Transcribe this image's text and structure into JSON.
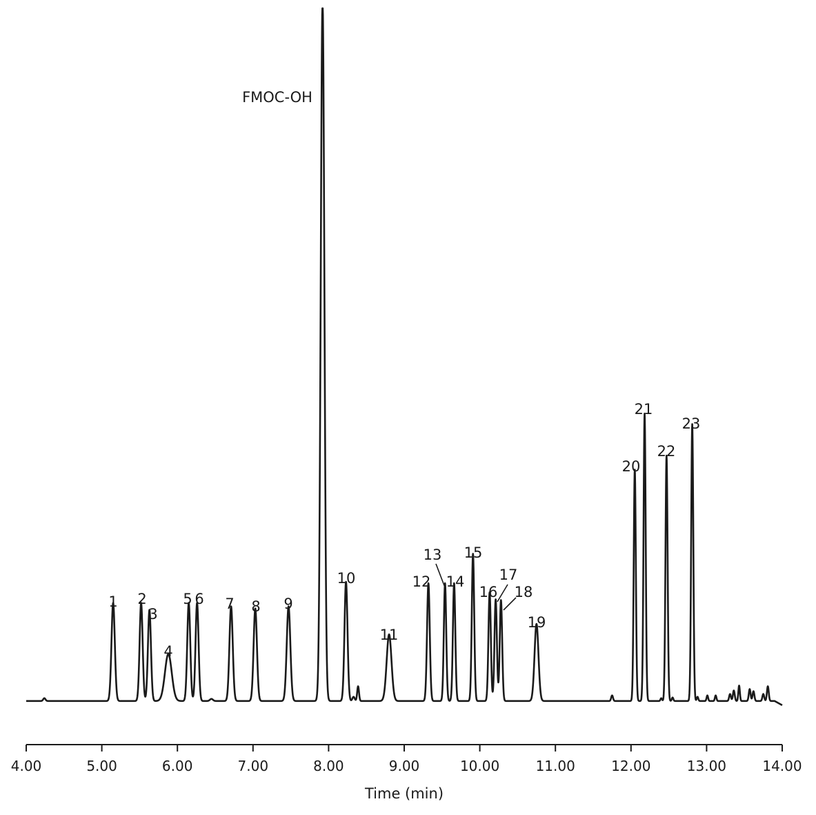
{
  "chart_data": {
    "type": "line",
    "xlabel": "Time (min)",
    "ylabel": "",
    "title": "",
    "xlim": [
      4.0,
      14.0
    ],
    "ylim": [
      0,
      100
    ],
    "grid": false,
    "legend": "none",
    "line_color": "#1a1a1a",
    "x_ticks": [
      "4.00",
      "5.00",
      "6.00",
      "7.00",
      "8.00",
      "9.00",
      "10.00",
      "11.00",
      "12.00",
      "13.00",
      "14.00"
    ],
    "baseline": 1.2,
    "peaks": [
      {
        "label": "1",
        "x": 5.15,
        "y": 14.0,
        "width": 0.022
      },
      {
        "label": "2",
        "x": 5.52,
        "y": 14.0,
        "width": 0.02
      },
      {
        "label": "3",
        "x": 5.63,
        "y": 13.0,
        "width": 0.02
      },
      {
        "label": "4",
        "x": 5.88,
        "y": 6.7,
        "width": 0.045
      },
      {
        "label": "5",
        "x": 6.15,
        "y": 14.0,
        "width": 0.02
      },
      {
        "label": "6",
        "x": 6.26,
        "y": 14.0,
        "width": 0.02
      },
      {
        "label": "7",
        "x": 6.71,
        "y": 13.5,
        "width": 0.022
      },
      {
        "label": "8",
        "x": 7.03,
        "y": 13.2,
        "width": 0.022
      },
      {
        "label": "9",
        "x": 7.47,
        "y": 13.5,
        "width": 0.024
      },
      {
        "label": "FMOC-OH",
        "x": 7.92,
        "y": 100,
        "width": 0.024
      },
      {
        "label": "10",
        "x": 8.23,
        "y": 17.0,
        "width": 0.02
      },
      {
        "label": "11",
        "x": 8.8,
        "y": 9.5,
        "width": 0.032
      },
      {
        "label": "12",
        "x": 9.32,
        "y": 16.8,
        "width": 0.018
      },
      {
        "label": "13",
        "x": 9.54,
        "y": 16.8,
        "width": 0.016
      },
      {
        "label": "14",
        "x": 9.66,
        "y": 16.8,
        "width": 0.016
      },
      {
        "label": "15",
        "x": 9.91,
        "y": 21.0,
        "width": 0.016
      },
      {
        "label": "16",
        "x": 10.13,
        "y": 15.5,
        "width": 0.016
      },
      {
        "label": "17",
        "x": 10.21,
        "y": 14.5,
        "width": 0.016
      },
      {
        "label": "18",
        "x": 10.28,
        "y": 14.4,
        "width": 0.016
      },
      {
        "label": "19",
        "x": 10.75,
        "y": 11.0,
        "width": 0.026
      },
      {
        "label": "20",
        "x": 12.05,
        "y": 33.0,
        "width": 0.014
      },
      {
        "label": "21",
        "x": 12.18,
        "y": 41.0,
        "width": 0.014
      },
      {
        "label": "22",
        "x": 12.47,
        "y": 35.0,
        "width": 0.014
      },
      {
        "label": "23",
        "x": 12.81,
        "y": 39.5,
        "width": 0.014
      }
    ],
    "minor_peaks": [
      {
        "x": 4.24,
        "y": 0.4,
        "width": 0.015
      },
      {
        "x": 6.45,
        "y": 0.3,
        "width": 0.02
      },
      {
        "x": 8.33,
        "y": 0.6,
        "width": 0.015
      },
      {
        "x": 8.39,
        "y": 2.1,
        "width": 0.012
      },
      {
        "x": 11.75,
        "y": 0.8,
        "width": 0.012
      },
      {
        "x": 12.4,
        "y": 0.4,
        "width": 0.01
      },
      {
        "x": 12.55,
        "y": 0.5,
        "width": 0.01
      },
      {
        "x": 12.88,
        "y": 0.6,
        "width": 0.01
      },
      {
        "x": 13.01,
        "y": 0.8,
        "width": 0.01
      },
      {
        "x": 13.12,
        "y": 0.8,
        "width": 0.01
      },
      {
        "x": 13.31,
        "y": 1.0,
        "width": 0.012
      },
      {
        "x": 13.36,
        "y": 1.5,
        "width": 0.012
      },
      {
        "x": 13.43,
        "y": 2.2,
        "width": 0.01
      },
      {
        "x": 13.57,
        "y": 1.7,
        "width": 0.012
      },
      {
        "x": 13.62,
        "y": 1.4,
        "width": 0.012
      },
      {
        "x": 13.75,
        "y": 1.0,
        "width": 0.012
      },
      {
        "x": 13.81,
        "y": 2.1,
        "width": 0.012
      }
    ]
  }
}
